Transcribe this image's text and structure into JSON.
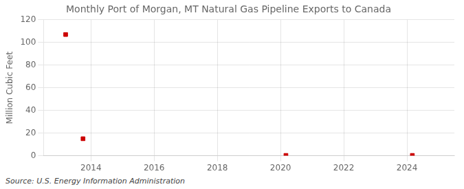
{
  "chart_data": {
    "type": "scatter",
    "title": "Monthly Port of Morgan, MT Natural Gas Pipeline Exports to Canada",
    "ylabel": "Million Cubic Feet",
    "source": "Source: U.S. Energy Information Administration",
    "x": [
      2013.2,
      2013.75,
      2020.17,
      2024.17
    ],
    "values": [
      107,
      15,
      0.3,
      0.3
    ],
    "color": "#cc0000",
    "marker": "square",
    "xlim": [
      2012.5,
      2025.5
    ],
    "xticks": [
      2014,
      2016,
      2018,
      2020,
      2022,
      2024
    ],
    "ylim": [
      0,
      120
    ],
    "yticks": [
      0,
      20,
      40,
      60,
      80,
      100,
      120
    ],
    "grid": true
  }
}
